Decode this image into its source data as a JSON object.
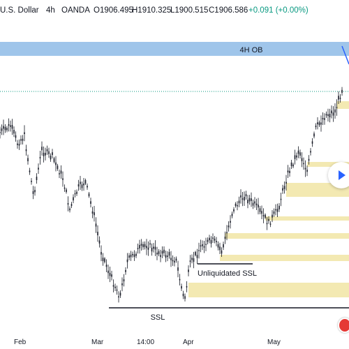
{
  "header": {
    "symbol": "U.S. Dollar",
    "interval": "4h",
    "exchange": "OANDA",
    "open": "O1906.495",
    "high": "H1910.325",
    "low": "L1900.515",
    "close": "C1906.586",
    "change": "+0.091 (+0.00%)",
    "change_color": "#089981"
  },
  "annotations": {
    "ob_label": "4H OB",
    "ssl_label": "SSL",
    "unliquidated_label": "Unliquidated SSL"
  },
  "colors": {
    "ob_zone": "#9fc5ea",
    "fvg_zone": "#f3e9b2",
    "candle": "#131722",
    "price_line": "#089981",
    "trend_line": "#2962ff"
  },
  "time_axis": {
    "labels": [
      "Feb",
      "Mar",
      "14:00",
      "Apr",
      "May"
    ]
  },
  "icons": {
    "play": "play-icon",
    "flag": "flag-icon"
  }
}
